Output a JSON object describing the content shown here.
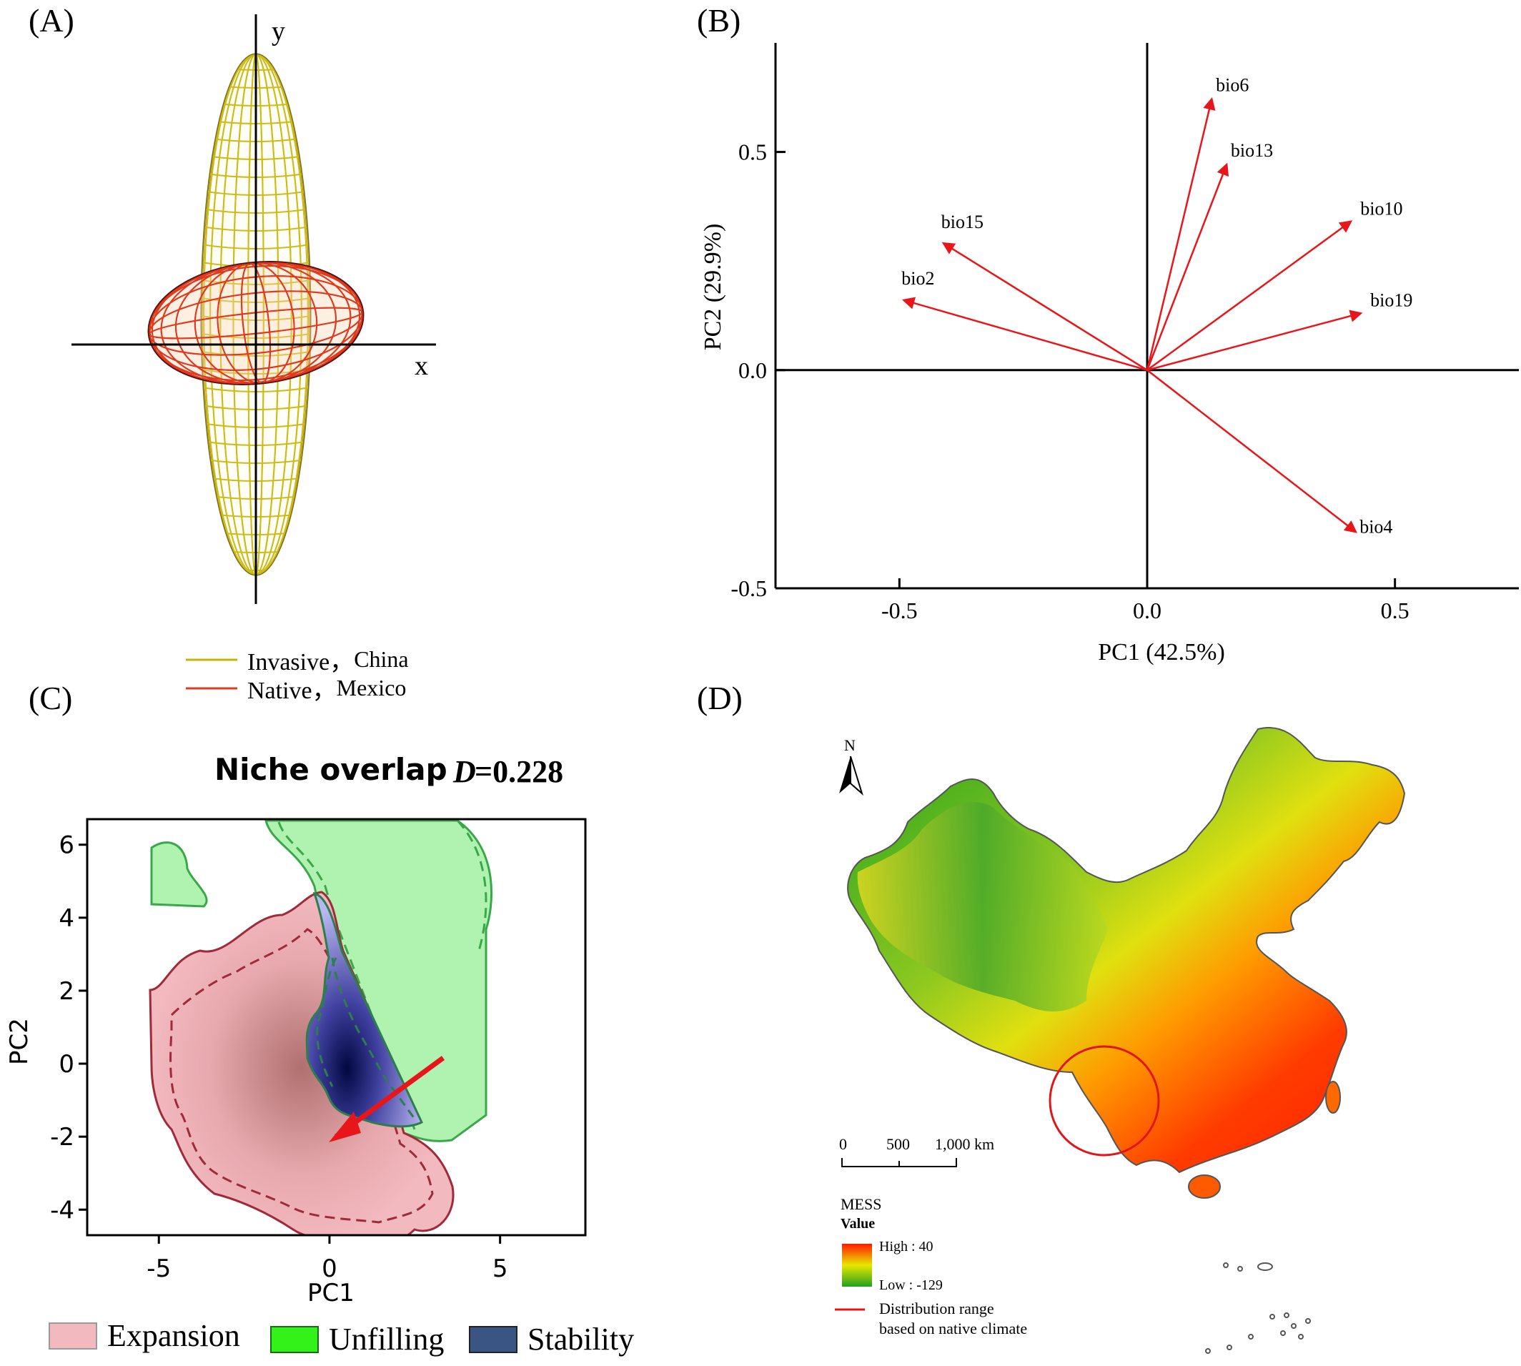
{
  "panels": {
    "a": {
      "label": "(A)",
      "x_axis": "x",
      "y_axis": "y",
      "legend": [
        {
          "name": "Invasive，",
          "sub": "China",
          "color": "#c8b400"
        },
        {
          "name": "Native，",
          "sub": "Mexico",
          "color": "#e03a1e"
        }
      ]
    },
    "b": {
      "label": "(B)"
    },
    "c": {
      "label": "(C)"
    },
    "d": {
      "label": "(D)"
    }
  },
  "chart_data": [
    {
      "type": "scatter",
      "panel": "A",
      "description_free": true,
      "series": [
        {
          "name": "Invasive， China",
          "color": "#c8b400",
          "ellipsoid": {
            "center": [
              0,
              0
            ],
            "rx": 1.0,
            "ry": 5.6
          }
        },
        {
          "name": "Native， Mexico",
          "color": "#e03a1e",
          "ellipsoid": {
            "center": [
              0,
              0
            ],
            "rx": 1.9,
            "ry": 1.1
          }
        }
      ],
      "xlabel": "x",
      "ylabel": "y"
    },
    {
      "type": "scatter",
      "panel": "B",
      "xlabel": "PC1 (42.5%)",
      "ylabel": "PC2 (29.9%)",
      "xlim": [
        -0.75,
        0.75
      ],
      "ylim": [
        -0.5,
        0.75
      ],
      "xticks": [
        "-0.5",
        "0.0",
        "0.5"
      ],
      "yticks": [
        "-0.5",
        "0.0",
        "0.5"
      ],
      "xtick_values": [
        -0.5,
        0.0,
        0.5
      ],
      "ytick_values": [
        -0.5,
        0.0,
        0.5
      ],
      "arrow_color": "#e8161b",
      "vectors": [
        {
          "name": "bio6",
          "x": 0.13,
          "y": 0.62
        },
        {
          "name": "bio13",
          "x": 0.16,
          "y": 0.47
        },
        {
          "name": "bio10",
          "x": 0.41,
          "y": 0.34
        },
        {
          "name": "bio19",
          "x": 0.43,
          "y": 0.13
        },
        {
          "name": "bio15",
          "x": -0.41,
          "y": 0.29
        },
        {
          "name": "bio2",
          "x": -0.49,
          "y": 0.16
        },
        {
          "name": "bio4",
          "x": 0.42,
          "y": -0.37
        }
      ]
    },
    {
      "type": "area",
      "panel": "C",
      "title": "Niche overlap",
      "stat_italic": "D",
      "stat_value": "=0.228",
      "xlabel": "PC1",
      "ylabel": "PC2",
      "xlim": [
        -7.1,
        7.5
      ],
      "ylim": [
        -4.7,
        6.7
      ],
      "xticks": [
        "-5",
        "0",
        "5"
      ],
      "xtick_values": [
        -5,
        0,
        5
      ],
      "yticks": [
        "6",
        "4",
        "2",
        "0",
        "-2",
        "-4"
      ],
      "ytick_values": [
        6,
        4,
        2,
        0,
        -2,
        -4
      ],
      "legend": [
        {
          "name": "Expansion",
          "color": "#f2b9be"
        },
        {
          "name": "Unfilling",
          "color": "#32f21a"
        },
        {
          "name": "Stability",
          "color": "#3a5583"
        }
      ]
    },
    {
      "type": "heatmap",
      "panel": "D",
      "north": "N",
      "scalebar": [
        "0",
        "500",
        "1,000 km"
      ],
      "legend_title": "MESS",
      "legend_subtitle": "Value",
      "high_label": "High : 40",
      "low_label": "Low : -129",
      "range_label_1": "Distribution range",
      "range_label_2": "based on native climate",
      "colors": {
        "high": "#ff1a00",
        "mid": "#e8e800",
        "low": "#22a01e",
        "range": "#e0161b"
      }
    }
  ]
}
